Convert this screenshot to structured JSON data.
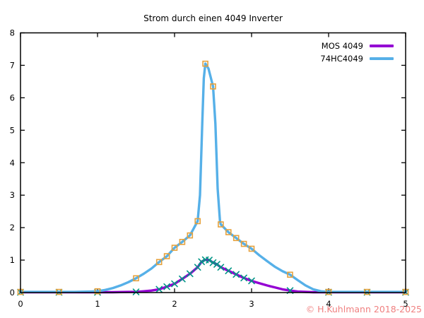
{
  "watermark": {
    "text": "© H.Kuhlmann 2018-2025",
    "color": "#f08080"
  },
  "chart_data": {
    "type": "line",
    "title": "Strom durch einen 4049 Inverter",
    "xlabel": "",
    "ylabel": "",
    "xlim": [
      0,
      5
    ],
    "ylim": [
      0,
      8
    ],
    "xticks": [
      0,
      1,
      2,
      3,
      4,
      5
    ],
    "yticks": [
      0,
      1,
      2,
      3,
      4,
      5,
      6,
      7,
      8
    ],
    "grid": false,
    "legend_position": "top-right-inside",
    "axis_color": "#000000",
    "background_color": "#ffffff",
    "series": [
      {
        "name": "MOS 4049",
        "color": "#9400d3",
        "marker": "x",
        "marker_color": "#009585",
        "points": [
          [
            0,
            0.01
          ],
          [
            0.5,
            0.01
          ],
          [
            1.0,
            0.01
          ],
          [
            1.2,
            0.01
          ],
          [
            1.4,
            0.02
          ],
          [
            1.5,
            0.02
          ],
          [
            1.6,
            0.04
          ],
          [
            1.7,
            0.06
          ],
          [
            1.8,
            0.1
          ],
          [
            1.9,
            0.18
          ],
          [
            2.0,
            0.27
          ],
          [
            2.1,
            0.42
          ],
          [
            2.2,
            0.58
          ],
          [
            2.3,
            0.78
          ],
          [
            2.35,
            0.95
          ],
          [
            2.4,
            1.01
          ],
          [
            2.45,
            1.0
          ],
          [
            2.5,
            0.92
          ],
          [
            2.55,
            0.87
          ],
          [
            2.6,
            0.78
          ],
          [
            2.7,
            0.67
          ],
          [
            2.8,
            0.56
          ],
          [
            2.9,
            0.45
          ],
          [
            3.0,
            0.36
          ],
          [
            3.1,
            0.29
          ],
          [
            3.2,
            0.22
          ],
          [
            3.3,
            0.16
          ],
          [
            3.4,
            0.1
          ],
          [
            3.5,
            0.06
          ],
          [
            3.6,
            0.03
          ],
          [
            3.8,
            0.01
          ],
          [
            4.0,
            0.01
          ],
          [
            4.5,
            0.01
          ],
          [
            5.0,
            0.01
          ]
        ],
        "marker_points": [
          [
            0,
            0.01
          ],
          [
            0.5,
            0.01
          ],
          [
            1.0,
            0.01
          ],
          [
            1.5,
            0.02
          ],
          [
            1.8,
            0.1
          ],
          [
            1.9,
            0.18
          ],
          [
            2.0,
            0.27
          ],
          [
            2.1,
            0.42
          ],
          [
            2.2,
            0.58
          ],
          [
            2.3,
            0.78
          ],
          [
            2.35,
            0.95
          ],
          [
            2.4,
            1.01
          ],
          [
            2.45,
            1.0
          ],
          [
            2.5,
            0.92
          ],
          [
            2.55,
            0.87
          ],
          [
            2.6,
            0.78
          ],
          [
            2.7,
            0.67
          ],
          [
            2.8,
            0.56
          ],
          [
            2.9,
            0.45
          ],
          [
            3.0,
            0.36
          ],
          [
            3.5,
            0.06
          ],
          [
            4.0,
            0.01
          ],
          [
            4.5,
            0.01
          ],
          [
            5.0,
            0.01
          ]
        ]
      },
      {
        "name": "74HC4049",
        "color": "#56b0e8",
        "marker": "square",
        "marker_color": "#e6a13c",
        "points": [
          [
            0,
            0.02
          ],
          [
            0.3,
            0.02
          ],
          [
            0.5,
            0.02
          ],
          [
            0.7,
            0.02
          ],
          [
            0.9,
            0.03
          ],
          [
            1.0,
            0.04
          ],
          [
            1.1,
            0.08
          ],
          [
            1.2,
            0.14
          ],
          [
            1.3,
            0.22
          ],
          [
            1.4,
            0.32
          ],
          [
            1.5,
            0.44
          ],
          [
            1.6,
            0.58
          ],
          [
            1.7,
            0.74
          ],
          [
            1.8,
            0.94
          ],
          [
            1.9,
            1.12
          ],
          [
            2.0,
            1.38
          ],
          [
            2.1,
            1.56
          ],
          [
            2.2,
            1.76
          ],
          [
            2.3,
            2.2
          ],
          [
            2.33,
            3.0
          ],
          [
            2.36,
            5.2
          ],
          [
            2.38,
            6.6
          ],
          [
            2.4,
            7.05
          ],
          [
            2.44,
            6.9
          ],
          [
            2.5,
            6.35
          ],
          [
            2.53,
            5.2
          ],
          [
            2.56,
            3.2
          ],
          [
            2.59,
            2.2
          ],
          [
            2.6,
            2.1
          ],
          [
            2.7,
            1.86
          ],
          [
            2.8,
            1.68
          ],
          [
            2.9,
            1.5
          ],
          [
            3.0,
            1.35
          ],
          [
            3.1,
            1.15
          ],
          [
            3.2,
            0.97
          ],
          [
            3.3,
            0.8
          ],
          [
            3.4,
            0.66
          ],
          [
            3.5,
            0.55
          ],
          [
            3.6,
            0.38
          ],
          [
            3.7,
            0.22
          ],
          [
            3.8,
            0.1
          ],
          [
            3.9,
            0.04
          ],
          [
            4.0,
            0.02
          ],
          [
            4.25,
            0.02
          ],
          [
            4.5,
            0.02
          ],
          [
            4.75,
            0.02
          ],
          [
            5.0,
            0.02
          ]
        ],
        "marker_points": [
          [
            0,
            0.02
          ],
          [
            0.5,
            0.02
          ],
          [
            1.0,
            0.04
          ],
          [
            1.5,
            0.44
          ],
          [
            1.8,
            0.94
          ],
          [
            1.9,
            1.12
          ],
          [
            2.0,
            1.38
          ],
          [
            2.1,
            1.56
          ],
          [
            2.2,
            1.76
          ],
          [
            2.3,
            2.2
          ],
          [
            2.4,
            7.05
          ],
          [
            2.5,
            6.35
          ],
          [
            2.6,
            2.1
          ],
          [
            2.7,
            1.86
          ],
          [
            2.8,
            1.68
          ],
          [
            2.9,
            1.5
          ],
          [
            3.0,
            1.35
          ],
          [
            3.5,
            0.55
          ],
          [
            4.0,
            0.02
          ],
          [
            4.5,
            0.02
          ],
          [
            5.0,
            0.02
          ]
        ]
      }
    ]
  }
}
